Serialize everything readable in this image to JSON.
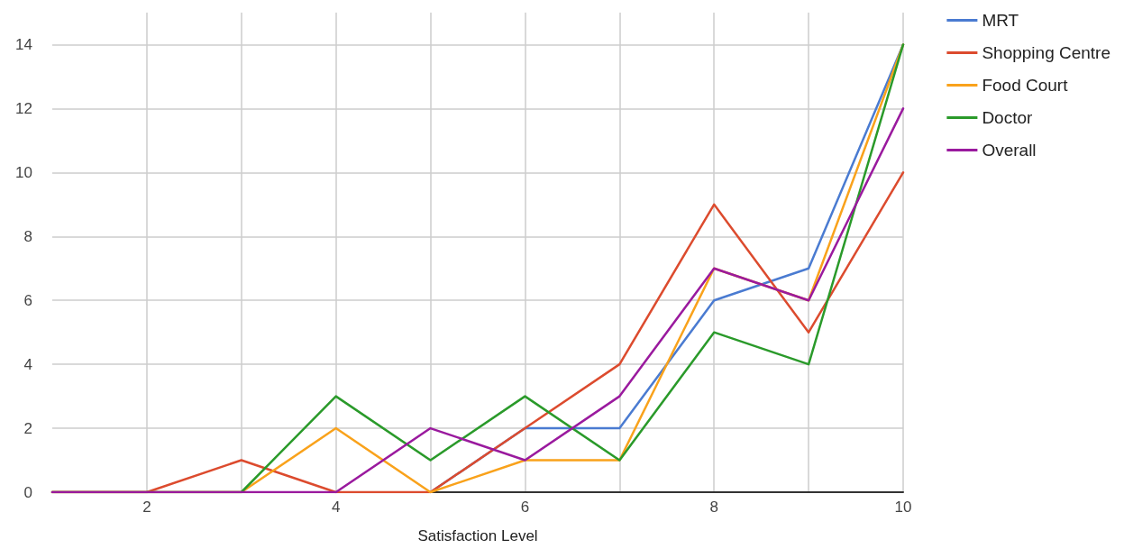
{
  "chart_data": {
    "type": "line",
    "xlabel": "Satisfaction Level",
    "x": [
      1,
      2,
      3,
      4,
      5,
      6,
      7,
      8,
      9,
      10
    ],
    "xlim": [
      1,
      10
    ],
    "xticks": [
      2,
      {
        "value": 3,
        "label": null
      },
      4,
      {
        "value": 5,
        "label": null
      },
      6,
      {
        "value": 7,
        "label": null
      },
      8,
      {
        "value": 9,
        "label": null
      },
      10
    ],
    "ylim": [
      0,
      15
    ],
    "yticks": [
      0,
      2,
      4,
      6,
      8,
      10,
      12,
      14
    ],
    "grid": true,
    "legend": "top right",
    "marker": "none",
    "line_style": "solid",
    "series": [
      {
        "name": "MRT",
        "color": "#4a7bd1",
        "values": [
          null,
          null,
          null,
          null,
          0,
          2,
          2,
          6,
          7,
          14
        ]
      },
      {
        "name": "Shopping Centre",
        "color": "#dc4b2e",
        "values": [
          0,
          0,
          1,
          0,
          0,
          2,
          4,
          9,
          5,
          10
        ]
      },
      {
        "name": "Food Court",
        "color": "#f9a21b",
        "values": [
          0,
          0,
          0,
          2,
          0,
          1,
          1,
          7,
          6,
          14
        ]
      },
      {
        "name": "Doctor",
        "color": "#2a9a2a",
        "values": [
          0,
          0,
          0,
          3,
          1,
          3,
          1,
          5,
          4,
          14
        ]
      },
      {
        "name": "Overall",
        "color": "#9a1a9e",
        "values": [
          0,
          0,
          0,
          0,
          2,
          1,
          3,
          7,
          6,
          12
        ]
      }
    ]
  }
}
